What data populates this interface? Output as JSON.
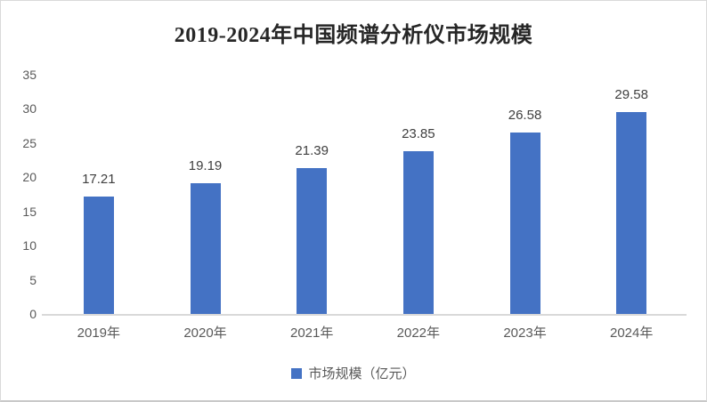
{
  "title": "2019-2024年中国频谱分析仪市场规模",
  "legend": {
    "label": "市场规模（亿元）"
  },
  "chart_data": {
    "type": "bar",
    "title": "2019-2024年中国频谱分析仪市场规模",
    "categories": [
      "2019年",
      "2020年",
      "2021年",
      "2022年",
      "2023年",
      "2024年"
    ],
    "values": [
      17.21,
      19.19,
      21.39,
      23.85,
      26.58,
      29.58
    ],
    "data_labels": [
      "17.21",
      "19.19",
      "21.39",
      "23.85",
      "26.58",
      "29.58"
    ],
    "series_name": "市场规模（亿元）",
    "xlabel": "",
    "ylabel": "",
    "ylim": [
      0,
      35
    ],
    "ytick_step": 5,
    "ytick_labels": [
      "0",
      "5",
      "10",
      "15",
      "20",
      "25",
      "30",
      "35"
    ],
    "grid": false,
    "legend_position": "bottom",
    "colors": {
      "bar": "#4472C4",
      "axis_line": "#D9D9D9",
      "tick_label": "#595959",
      "data_label": "#3F3F3F",
      "title": "#262626",
      "background": "#FFFFFF"
    }
  }
}
